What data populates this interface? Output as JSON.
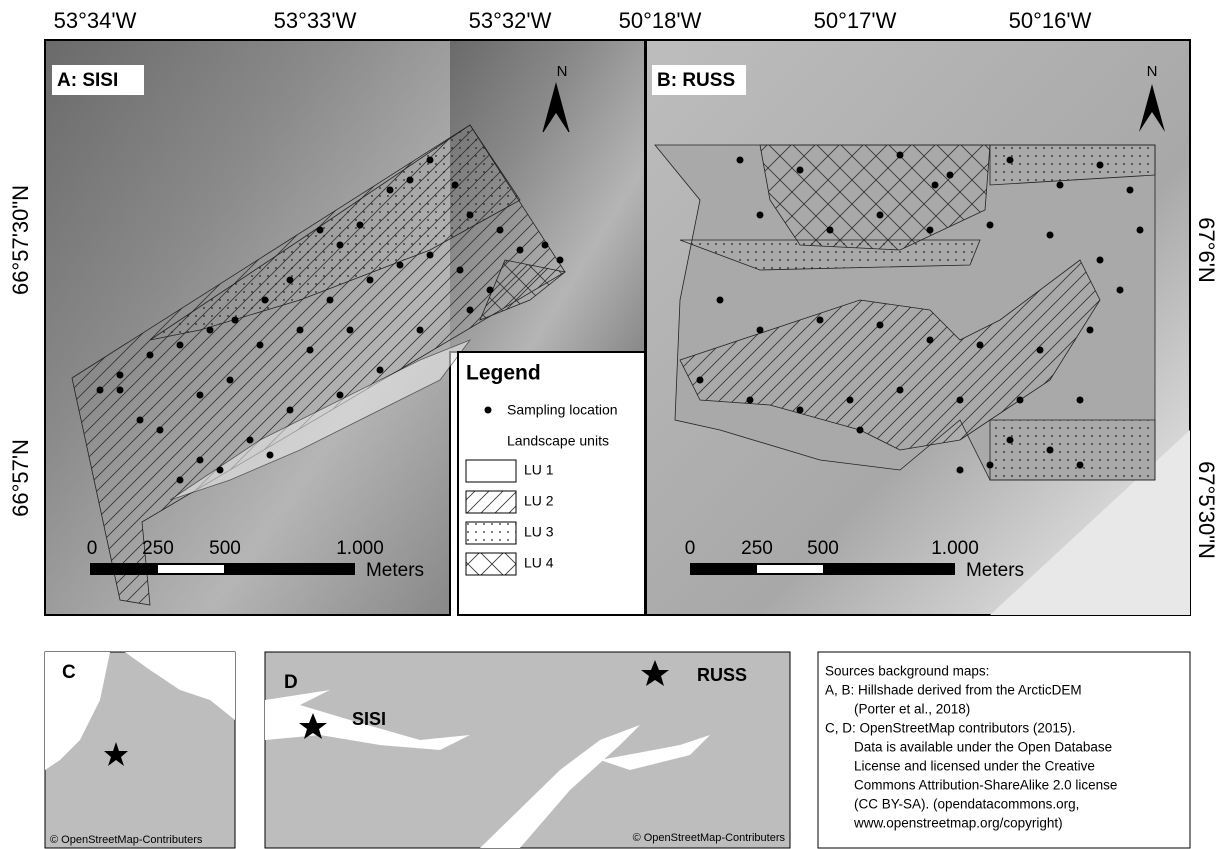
{
  "panels": [
    {
      "label": "A: SISI",
      "north": "N",
      "lon_labels": [
        "53°34'W",
        "53°33'W",
        "53°32'W"
      ],
      "lat_labels": [
        "66°57'30\"N",
        "66°57'N"
      ],
      "scale_labels": [
        "0",
        "250",
        "500",
        "1.000"
      ],
      "scale_unit": "Meters"
    },
    {
      "label": "B: RUSS",
      "north": "N",
      "lon_labels": [
        "50°18'W",
        "50°17'W",
        "50°16'W"
      ],
      "lat_labels": [
        "67°6'N",
        "67°5'30\"N"
      ],
      "scale_labels": [
        "0",
        "250",
        "500",
        "1.000"
      ],
      "scale_unit": "Meters"
    }
  ],
  "legend": {
    "title": "Legend",
    "sampling": "Sampling location",
    "units_title": "Landscape units",
    "units": [
      "LU 1",
      "LU 2",
      "LU 3",
      "LU 4"
    ]
  },
  "inset_c": {
    "label": "C",
    "credit": "© OpenStreetMap-Contributers"
  },
  "inset_d": {
    "label": "D",
    "sites": [
      "SISI",
      "RUSS"
    ],
    "credit": "© OpenStreetMap-Contributers"
  },
  "sources": {
    "lines": [
      "Sources background maps:",
      "A, B: Hillshade derived from the ArcticDEM",
      "(Porter et al., 2018)",
      "C, D: OpenStreetMap contributors (2015).",
      "Data is available under the Open Database",
      "License and licensed under the Creative",
      "Commons Attribution-ShareAlike 2.0 license",
      "(CC BY-SA). (opendatacommons.org,",
      "www.openstreetmap.org/copyright)"
    ]
  }
}
